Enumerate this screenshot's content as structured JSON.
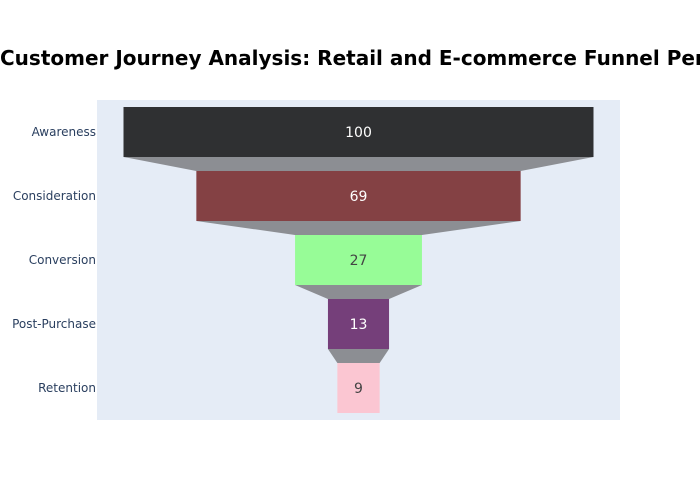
{
  "chart_data": {
    "type": "funnel",
    "title": "Customer Journey Analysis: Retail and E-commerce Funnel Performance",
    "categories": [
      "Awareness",
      "Consideration",
      "Conversion",
      "Post-Purchase",
      "Retention"
    ],
    "values": [
      100,
      69,
      27,
      13,
      9
    ],
    "colors": [
      "#2f3032",
      "#844144",
      "#97fc97",
      "#753f7a",
      "#fbc6d2"
    ],
    "label_colors": [
      "#ffffff",
      "#ffffff",
      "#444444",
      "#ffffff",
      "#444444"
    ],
    "connector_color": "#8c8e93",
    "plot_background": "#e5ecf6",
    "xlabel": "",
    "ylabel": "",
    "grid": false,
    "legend": "none"
  }
}
